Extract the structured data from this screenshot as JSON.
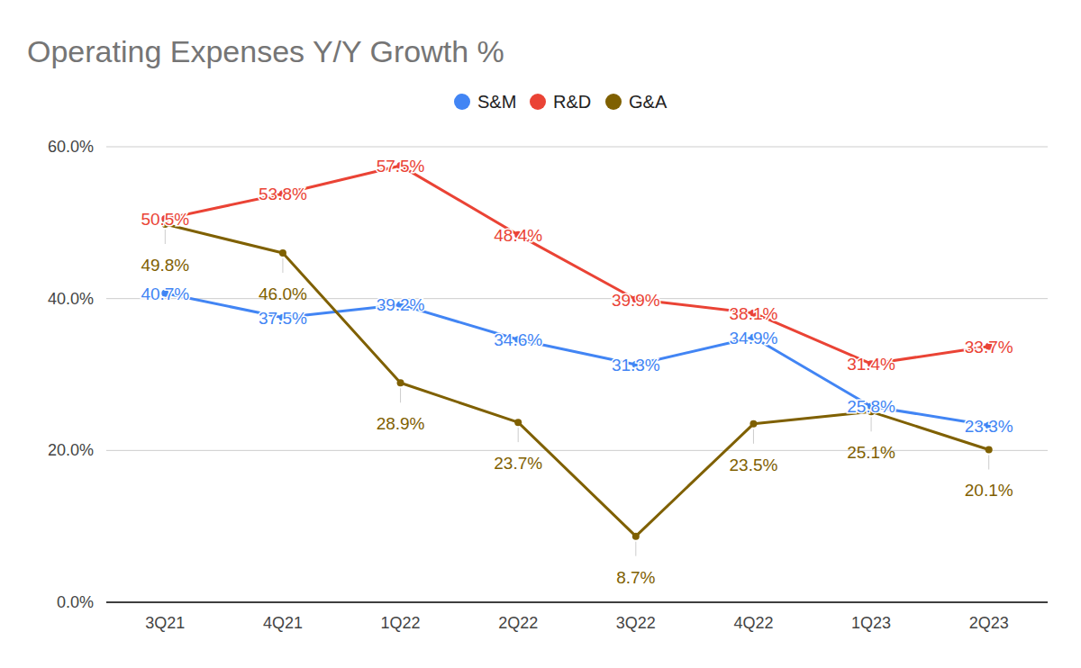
{
  "chart_data": {
    "type": "line",
    "title": "Operating Expenses Y/Y Growth %",
    "categories": [
      "3Q21",
      "4Q21",
      "1Q22",
      "2Q22",
      "3Q22",
      "4Q22",
      "1Q23",
      "2Q23"
    ],
    "series": [
      {
        "name": "S&M",
        "color": "#4285f4",
        "marker": "circle",
        "values": [
          40.7,
          37.5,
          39.2,
          34.6,
          31.3,
          34.9,
          25.8,
          23.3
        ],
        "value_labels": [
          "40.7%",
          "37.5%",
          "39.2%",
          "34.6%",
          "31.3%",
          "34.9%",
          "25.8%",
          "23.3%"
        ]
      },
      {
        "name": "R&D",
        "color": "#ea4335",
        "marker": "circle",
        "values": [
          50.5,
          53.8,
          57.5,
          48.4,
          39.9,
          38.1,
          31.4,
          33.7
        ],
        "value_labels": [
          "50.5%",
          "53.8%",
          "57.5%",
          "48.4%",
          "39.9%",
          "38.1%",
          "31.4%",
          "33.7%"
        ]
      },
      {
        "name": "G&A",
        "color": "#7f6000",
        "marker": "circle",
        "values": [
          49.8,
          46.0,
          28.9,
          23.7,
          8.7,
          23.5,
          25.1,
          20.1
        ],
        "value_labels": [
          "49.8%",
          "46.0%",
          "28.9%",
          "23.7%",
          "8.7%",
          "23.5%",
          "25.1%",
          "20.1%"
        ]
      }
    ],
    "ylim": [
      0,
      60
    ],
    "yticks": [
      {
        "value": 0,
        "label": "0.0%"
      },
      {
        "value": 20,
        "label": "20.0%"
      },
      {
        "value": 40,
        "label": "40.0%"
      },
      {
        "value": 60,
        "label": "60.0%"
      }
    ],
    "grid": true,
    "legend": "top",
    "data_labels": true
  }
}
